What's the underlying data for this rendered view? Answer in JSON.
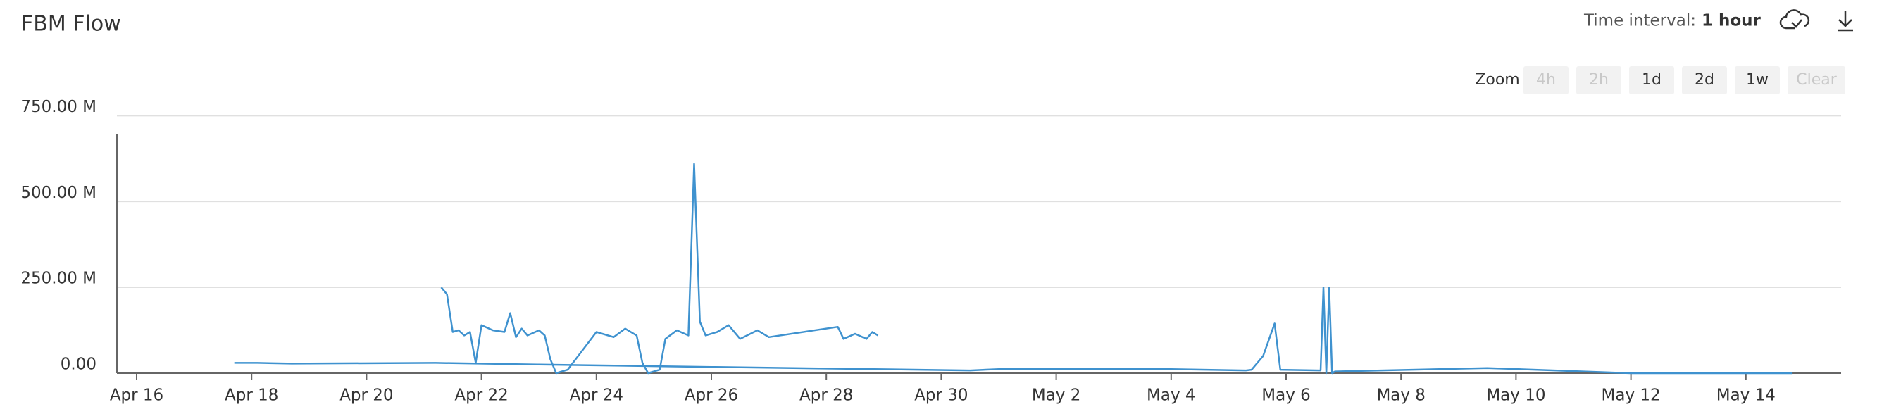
{
  "chart_data": {
    "type": "line",
    "title": "FBM Flow",
    "color": "#3f92cf",
    "ylim": [
      0,
      780
    ],
    "yticks": [
      {
        "value": 0,
        "label": "0.00"
      },
      {
        "value": 250,
        "label": "250.00 M"
      },
      {
        "value": 500,
        "label": "500.00 M"
      },
      {
        "value": 750,
        "label": "750.00 M"
      }
    ],
    "xlim": [
      15.6,
      45.8
    ],
    "xticks": [
      {
        "value": 16,
        "label": "Apr 16"
      },
      {
        "value": 18,
        "label": "Apr 18"
      },
      {
        "value": 20,
        "label": "Apr 20"
      },
      {
        "value": 22,
        "label": "Apr 22"
      },
      {
        "value": 24,
        "label": "Apr 24"
      },
      {
        "value": 26,
        "label": "Apr 26"
      },
      {
        "value": 28,
        "label": "Apr 28"
      },
      {
        "value": 30,
        "label": "Apr 30"
      },
      {
        "value": 32,
        "label": "May 2"
      },
      {
        "value": 34,
        "label": "May 4"
      },
      {
        "value": 36,
        "label": "May 6"
      },
      {
        "value": 38,
        "label": "May 8"
      },
      {
        "value": 40,
        "label": "May 10"
      },
      {
        "value": 42,
        "label": "May 12"
      },
      {
        "value": 44,
        "label": "May 14"
      }
    ],
    "grid": true,
    "series": [
      {
        "x": [
          17.7,
          18.1,
          18.7,
          21.2,
          23,
          26,
          30.5,
          31,
          34,
          35.3,
          35.4,
          35.6,
          35.8,
          35.9,
          36.6,
          36.65,
          36.7,
          36.75,
          36.8,
          36.85,
          39.5,
          42,
          44.8
        ],
        "values": [
          30,
          30,
          28,
          30,
          25,
          18,
          8,
          12,
          12,
          8,
          10,
          50,
          145,
          10,
          8,
          250,
          0,
          250,
          0,
          5,
          15,
          0,
          0
        ]
      },
      {
        "x": [
          21.3,
          21.4,
          21.5,
          21.6,
          21.7,
          21.8,
          21.9,
          22,
          22.2,
          22.4,
          22.5,
          22.6,
          22.7,
          22.8,
          23,
          23.1,
          23.2,
          23.3,
          23.5,
          24,
          24.3,
          24.5,
          24.7,
          24.8,
          24.9,
          25.1,
          25.2,
          25.4,
          25.6,
          25.7,
          25.8,
          25.9,
          26.1,
          26.3,
          26.5,
          26.8,
          27,
          28.2,
          28.3,
          28.5,
          28.7,
          28.8,
          28.9
        ],
        "values": [
          250,
          230,
          120,
          125,
          110,
          120,
          30,
          140,
          125,
          120,
          175,
          105,
          130,
          110,
          125,
          110,
          40,
          0,
          10,
          120,
          105,
          130,
          110,
          30,
          0,
          10,
          100,
          125,
          110,
          610,
          150,
          110,
          120,
          140,
          100,
          125,
          105,
          135,
          100,
          115,
          100,
          120,
          110
        ]
      }
    ]
  },
  "controls": {
    "interval_label": "Time interval:",
    "interval_value": "1 hour",
    "zoom_label": "Zoom",
    "zoom_buttons": [
      "4h",
      "2h",
      "1d",
      "2d",
      "1w",
      "Clear"
    ],
    "zoom_disabled": [
      true,
      true,
      false,
      false,
      false,
      true
    ]
  }
}
